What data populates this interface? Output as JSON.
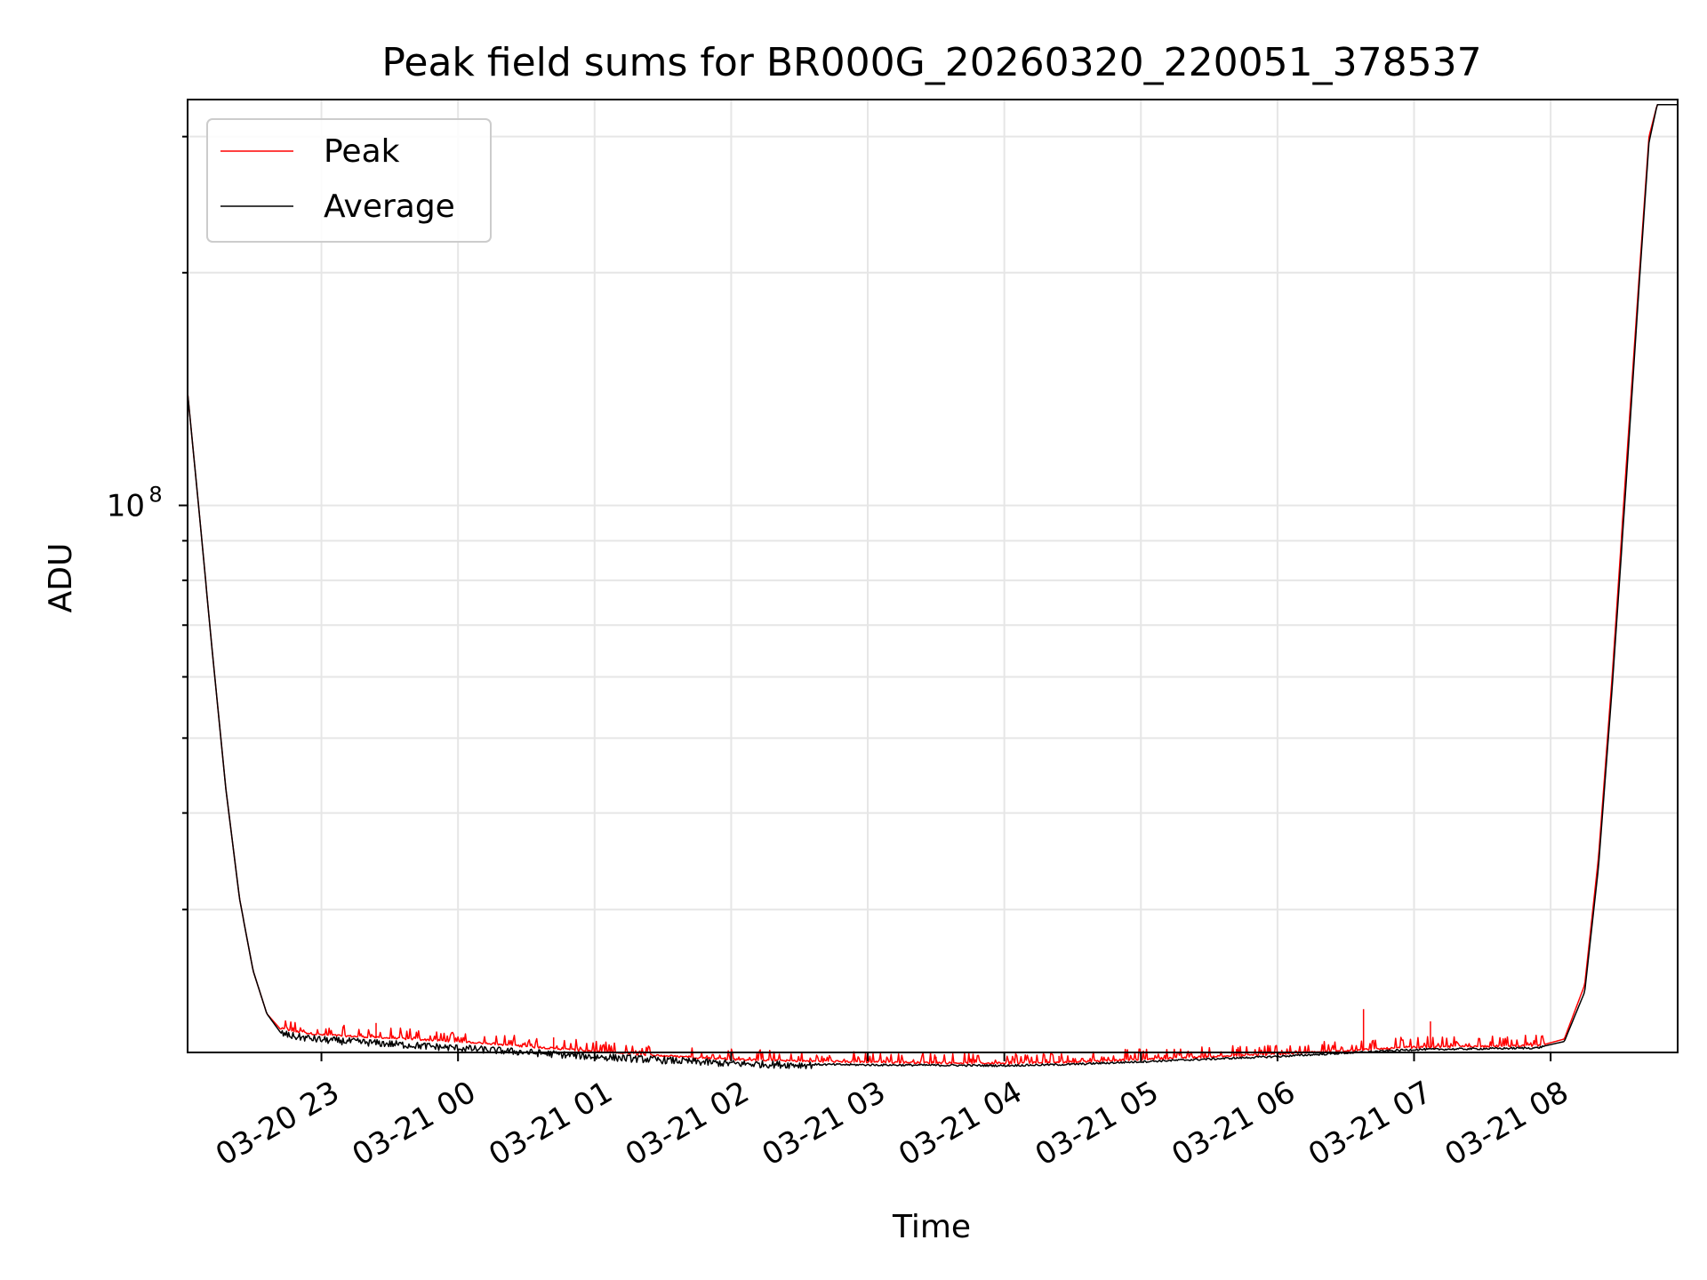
{
  "chart_data": {
    "type": "line",
    "title": "Peak field sums for BR000G_20260320_220051_378537",
    "xlabel": "Time",
    "ylabel": "ADU",
    "yscale": "log",
    "ylim": [
      19600000,
      335000000
    ],
    "xlim_hours": [
      -1.98,
      8.93
    ],
    "x_ticks": [
      {
        "hour": -1,
        "label": "03-20 23"
      },
      {
        "hour": 0,
        "label": "03-21 00"
      },
      {
        "hour": 1,
        "label": "03-21 01"
      },
      {
        "hour": 2,
        "label": "03-21 02"
      },
      {
        "hour": 3,
        "label": "03-21 03"
      },
      {
        "hour": 4,
        "label": "03-21 04"
      },
      {
        "hour": 5,
        "label": "03-21 05"
      },
      {
        "hour": 6,
        "label": "03-21 06"
      },
      {
        "hour": 7,
        "label": "03-21 07"
      },
      {
        "hour": 8,
        "label": "03-21 08"
      }
    ],
    "y_major_ticks": [
      {
        "value": 100000000,
        "label": "10",
        "exponent": "8"
      }
    ],
    "y_minor_ticks": [
      30000000,
      40000000,
      50000000,
      60000000,
      70000000,
      80000000,
      90000000,
      200000000,
      300000000
    ],
    "legend_position": "upper-left",
    "series": [
      {
        "name": "Peak",
        "color": "#ff0000",
        "x_hours": [
          -1.98,
          -1.9,
          -1.8,
          -1.7,
          -1.6,
          -1.5,
          -1.4,
          -1.3,
          -1.2,
          -1.0,
          -0.5,
          0.0,
          0.5,
          1.0,
          1.5,
          2.0,
          2.5,
          3.0,
          3.5,
          4.0,
          4.5,
          5.0,
          5.5,
          6.0,
          6.5,
          7.0,
          7.5,
          7.9,
          8.1,
          8.25,
          8.35,
          8.45,
          8.55,
          8.65,
          8.72,
          8.78,
          8.93
        ],
        "values": [
          140000000,
          100000000,
          65000000,
          43000000,
          31000000,
          25000000,
          22000000,
          21000000,
          20800000,
          20600000,
          20400000,
          20200000,
          19900000,
          19600000,
          19350000,
          19150000,
          19050000,
          19000000,
          18950000,
          18920000,
          19000000,
          19150000,
          19300000,
          19450000,
          19650000,
          19850000,
          19900000,
          19950000,
          20400000,
          24000000,
          35000000,
          60000000,
          110000000,
          200000000,
          300000000,
          330000000,
          330000000
        ],
        "spikes": [
          {
            "hour": -0.6,
            "value": 21400000
          },
          {
            "hour": 0.7,
            "value": 20500000
          },
          {
            "hour": 2.9,
            "value": 19450000
          },
          {
            "hour": 3.5,
            "value": 19350000
          },
          {
            "hour": 4.4,
            "value": 19400000
          },
          {
            "hour": 5.7,
            "value": 19800000
          },
          {
            "hour": 6.63,
            "value": 22300000
          },
          {
            "hour": 7.12,
            "value": 21500000
          }
        ]
      },
      {
        "name": "Average",
        "color": "#000000",
        "x_hours": [
          -1.98,
          -1.9,
          -1.8,
          -1.7,
          -1.6,
          -1.5,
          -1.4,
          -1.3,
          -1.2,
          -1.0,
          -0.5,
          0.0,
          0.5,
          1.0,
          1.5,
          2.0,
          2.5,
          3.0,
          3.5,
          4.0,
          4.5,
          5.0,
          5.5,
          6.0,
          6.5,
          7.0,
          7.5,
          7.9,
          8.1,
          8.25,
          8.35,
          8.45,
          8.55,
          8.65,
          8.72,
          8.78,
          8.93
        ],
        "values": [
          140000000,
          100000000,
          65000000,
          43000000,
          31000000,
          25000000,
          22000000,
          20800000,
          20600000,
          20400000,
          20150000,
          19900000,
          19650000,
          19400000,
          19200000,
          19000000,
          18930000,
          18900000,
          18880000,
          18860000,
          18930000,
          19080000,
          19230000,
          19380000,
          19580000,
          19780000,
          19830000,
          19880000,
          20250000,
          23500000,
          34000000,
          58000000,
          105000000,
          195000000,
          295000000,
          330000000,
          330000000
        ]
      }
    ]
  }
}
